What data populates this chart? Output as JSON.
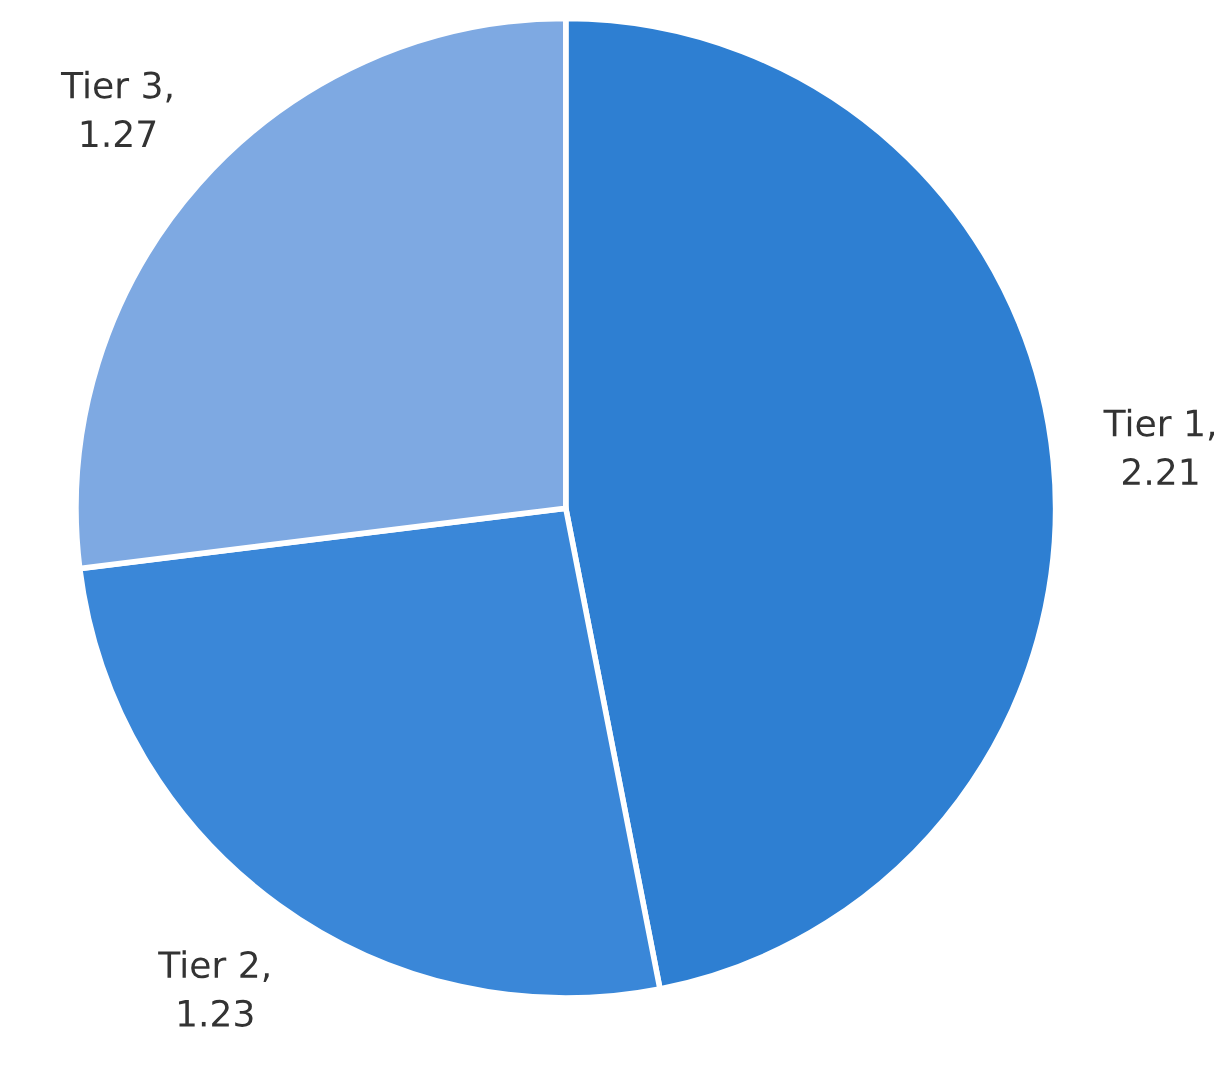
{
  "chart_data": {
    "type": "pie",
    "categories": [
      "Tier 1",
      "Tier 2",
      "Tier 3"
    ],
    "values": [
      2.21,
      1.23,
      1.27
    ],
    "value_labels": [
      ",\n2.21",
      ",\n1.23",
      ",\n1.27"
    ],
    "colors": [
      "#2e7fd2",
      "#3a87d8",
      "#7ea9e2"
    ]
  }
}
